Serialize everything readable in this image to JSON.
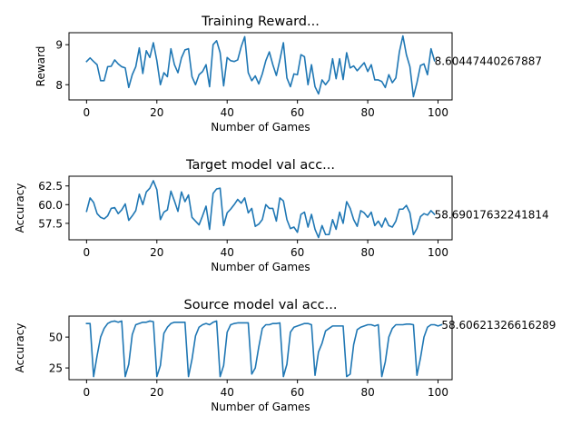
{
  "chart_data": [
    {
      "type": "line",
      "title": "Training Reward...",
      "xlabel": "Number of Games",
      "ylabel": "Reward",
      "xlim": [
        -5,
        104
      ],
      "ylim": [
        7.62,
        9.3
      ],
      "xticks": [
        0,
        20,
        40,
        60,
        80,
        100
      ],
      "yticks": [
        8,
        9
      ],
      "x_start": 0,
      "x_step": 1,
      "values": [
        8.58,
        8.67,
        8.58,
        8.5,
        8.1,
        8.1,
        8.45,
        8.46,
        8.62,
        8.52,
        8.45,
        8.42,
        7.93,
        8.25,
        8.45,
        8.92,
        8.28,
        8.85,
        8.68,
        9.05,
        8.6,
        8.0,
        8.3,
        8.2,
        8.9,
        8.5,
        8.3,
        8.67,
        8.87,
        8.9,
        8.2,
        8.0,
        8.25,
        8.33,
        8.5,
        7.95,
        9.0,
        9.1,
        8.8,
        7.97,
        8.68,
        8.6,
        8.58,
        8.62,
        8.95,
        9.2,
        8.3,
        8.1,
        8.22,
        8.02,
        8.27,
        8.6,
        8.82,
        8.5,
        8.23,
        8.62,
        9.05,
        8.17,
        7.95,
        8.27,
        8.25,
        8.75,
        8.7,
        8.0,
        8.5,
        7.95,
        7.77,
        8.12,
        8.0,
        8.12,
        8.65,
        8.15,
        8.65,
        8.13,
        8.8,
        8.42,
        8.47,
        8.35,
        8.45,
        8.55,
        8.33,
        8.5,
        8.12,
        8.12,
        8.08,
        7.93,
        8.25,
        8.05,
        8.17,
        8.82,
        9.22,
        8.75,
        8.45,
        7.7,
        8.05,
        8.48,
        8.52,
        8.25,
        8.9,
        8.6
      ],
      "annotation": "8.60447440267887"
    },
    {
      "type": "line",
      "title": "Target model val acc...",
      "xlabel": "Number of Games",
      "ylabel": "Accuracy",
      "xlim": [
        -5,
        104
      ],
      "ylim": [
        55.3,
        63.8
      ],
      "xticks": [
        0,
        20,
        40,
        60,
        80,
        100
      ],
      "yticks": [
        57.5,
        60.0,
        62.5
      ],
      "ytick_labels": [
        "57.5",
        "60.0",
        "62.5"
      ],
      "x_start": 0,
      "x_step": 1,
      "values": [
        59.1,
        60.9,
        60.3,
        58.8,
        58.3,
        58.1,
        58.5,
        59.5,
        59.6,
        58.8,
        59.3,
        60.1,
        57.9,
        58.5,
        59.2,
        61.4,
        60.0,
        61.7,
        62.2,
        63.2,
        62.0,
        58.0,
        59.0,
        59.3,
        61.8,
        60.5,
        59.1,
        61.7,
        60.4,
        61.3,
        58.3,
        57.8,
        57.3,
        58.5,
        59.8,
        56.7,
        61.5,
        62.1,
        62.2,
        57.2,
        58.9,
        59.4,
        60.0,
        60.7,
        60.2,
        60.9,
        58.9,
        59.5,
        57.1,
        57.4,
        58.0,
        60.0,
        59.5,
        59.5,
        57.8,
        60.9,
        60.5,
        58.0,
        56.8,
        57.0,
        56.3,
        58.7,
        59.0,
        57.0,
        58.7,
        56.7,
        55.6,
        57.2,
        56.0,
        56.0,
        58.0,
        56.7,
        59.0,
        57.5,
        60.4,
        59.5,
        58.0,
        57.1,
        59.2,
        58.9,
        58.3,
        59.0,
        57.2,
        57.8,
        57.0,
        58.2,
        57.2,
        57.0,
        57.8,
        59.4,
        59.4,
        59.9,
        58.9,
        56.0,
        56.8,
        58.4,
        58.8,
        58.6,
        59.2,
        58.7
      ],
      "annotation": "58.69017632241814"
    },
    {
      "type": "line",
      "title": "Source model val acc...",
      "xlabel": "Number of Games",
      "ylabel": "Accuracy",
      "xlim": [
        -5,
        104
      ],
      "ylim": [
        15.5,
        67
      ],
      "xticks": [
        0,
        20,
        40,
        60,
        80,
        100
      ],
      "yticks": [
        25,
        50
      ],
      "x_start": 0,
      "x_step": 1,
      "values": [
        61,
        61,
        18,
        35,
        50,
        57,
        61,
        62.5,
        63,
        62,
        63,
        18,
        28,
        52,
        60,
        61,
        62,
        62,
        63,
        62.5,
        18,
        27,
        53,
        58,
        61,
        62,
        62,
        62,
        62,
        18,
        32,
        51,
        58,
        60,
        61,
        60,
        62,
        63,
        18,
        27,
        54,
        60,
        61,
        61.5,
        61.5,
        61.5,
        61.5,
        20,
        25,
        42,
        57,
        60,
        60,
        61,
        61,
        61.5,
        18,
        28,
        54,
        58,
        59,
        60,
        61,
        61,
        60,
        19,
        38,
        45,
        55,
        57,
        59,
        59,
        59,
        59,
        18,
        20,
        44,
        56,
        58,
        59,
        60,
        60,
        59,
        60,
        18,
        30,
        50,
        57,
        60,
        60,
        60,
        60.5,
        60.5,
        60,
        19,
        33,
        50,
        58,
        60,
        60,
        59,
        60
      ],
      "annotation": "58.60621326616289"
    }
  ]
}
